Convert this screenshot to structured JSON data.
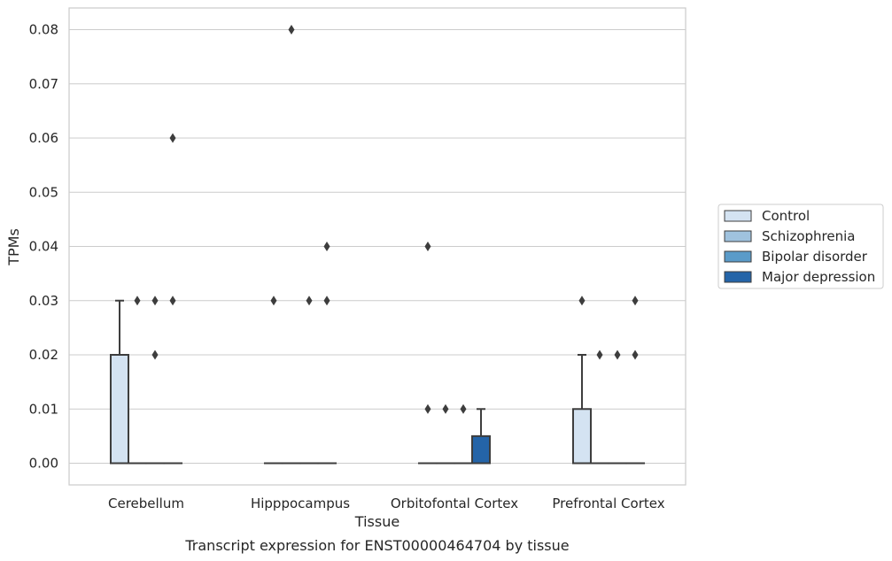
{
  "chart_data": {
    "type": "box",
    "title": "",
    "caption": "Transcript expression for ENST00000464704 by tissue",
    "xlabel": "Tissue",
    "ylabel": "TPMs",
    "ylim": [
      -0.004,
      0.084
    ],
    "yticks": [
      0.0,
      0.01,
      0.02,
      0.03,
      0.04,
      0.05,
      0.06,
      0.07,
      0.08
    ],
    "ytick_labels": [
      "0.00",
      "0.01",
      "0.02",
      "0.03",
      "0.04",
      "0.05",
      "0.06",
      "0.07",
      "0.08"
    ],
    "grid": "horizontal",
    "legend_position": "right",
    "categories": [
      "Cerebellum",
      "Hipppocampus",
      "Orbitofontal Cortex",
      "Prefrontal Cortex"
    ],
    "series": [
      {
        "name": "Control",
        "color": "#d4e3f2",
        "boxes": [
          {
            "q1": 0.0,
            "median": 0.0,
            "q3": 0.02,
            "whisker_low": 0.0,
            "whisker_high": 0.03,
            "outliers": []
          },
          {
            "q1": 0.0,
            "median": 0.0,
            "q3": 0.0,
            "whisker_low": 0.0,
            "whisker_high": 0.0,
            "outliers": [
              0.03
            ]
          },
          {
            "q1": 0.0,
            "median": 0.0,
            "q3": 0.0,
            "whisker_low": 0.0,
            "whisker_high": 0.0,
            "outliers": [
              0.04,
              0.01
            ]
          },
          {
            "q1": 0.0,
            "median": 0.0,
            "q3": 0.01,
            "whisker_low": 0.0,
            "whisker_high": 0.02,
            "outliers": [
              0.03
            ]
          }
        ]
      },
      {
        "name": "Schizophrenia",
        "color": "#9fc2de",
        "boxes": [
          {
            "q1": 0.0,
            "median": 0.0,
            "q3": 0.0,
            "whisker_low": 0.0,
            "whisker_high": 0.0,
            "outliers": [
              0.03
            ]
          },
          {
            "q1": 0.0,
            "median": 0.0,
            "q3": 0.0,
            "whisker_low": 0.0,
            "whisker_high": 0.0,
            "outliers": [
              0.08
            ]
          },
          {
            "q1": 0.0,
            "median": 0.0,
            "q3": 0.0,
            "whisker_low": 0.0,
            "whisker_high": 0.0,
            "outliers": [
              0.01
            ]
          },
          {
            "q1": 0.0,
            "median": 0.0,
            "q3": 0.0,
            "whisker_low": 0.0,
            "whisker_high": 0.0,
            "outliers": [
              0.02
            ]
          }
        ]
      },
      {
        "name": "Bipolar disorder",
        "color": "#5a9bc9",
        "boxes": [
          {
            "q1": 0.0,
            "median": 0.0,
            "q3": 0.0,
            "whisker_low": 0.0,
            "whisker_high": 0.0,
            "outliers": [
              0.03,
              0.02
            ]
          },
          {
            "q1": 0.0,
            "median": 0.0,
            "q3": 0.0,
            "whisker_low": 0.0,
            "whisker_high": 0.0,
            "outliers": [
              0.03
            ]
          },
          {
            "q1": 0.0,
            "median": 0.0,
            "q3": 0.0,
            "whisker_low": 0.0,
            "whisker_high": 0.0,
            "outliers": [
              0.01
            ]
          },
          {
            "q1": 0.0,
            "median": 0.0,
            "q3": 0.0,
            "whisker_low": 0.0,
            "whisker_high": 0.0,
            "outliers": [
              0.02
            ]
          }
        ]
      },
      {
        "name": "Major depression",
        "color": "#2464a8",
        "boxes": [
          {
            "q1": 0.0,
            "median": 0.0,
            "q3": 0.0,
            "whisker_low": 0.0,
            "whisker_high": 0.0,
            "outliers": [
              0.06,
              0.03
            ]
          },
          {
            "q1": 0.0,
            "median": 0.0,
            "q3": 0.0,
            "whisker_low": 0.0,
            "whisker_high": 0.0,
            "outliers": [
              0.04,
              0.03
            ]
          },
          {
            "q1": 0.0,
            "median": 0.0,
            "q3": 0.005,
            "whisker_low": 0.0,
            "whisker_high": 0.01,
            "outliers": []
          },
          {
            "q1": 0.0,
            "median": 0.0,
            "q3": 0.0,
            "whisker_low": 0.0,
            "whisker_high": 0.0,
            "outliers": [
              0.03,
              0.02
            ]
          }
        ]
      }
    ]
  }
}
